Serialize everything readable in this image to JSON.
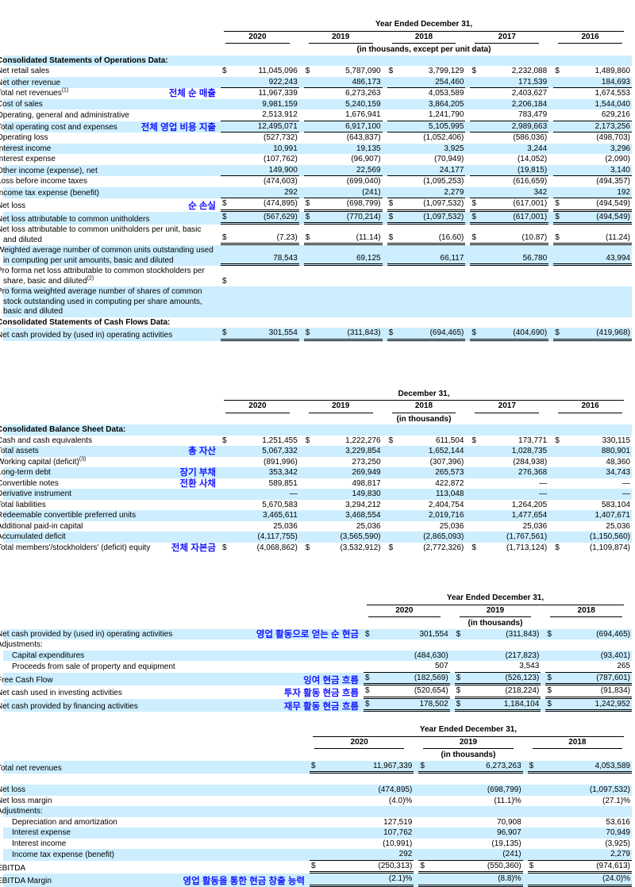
{
  "colors": {
    "row_shade": "#cceeff",
    "annotation_blue": "#1414ff",
    "border": "#000000"
  },
  "tables": [
    {
      "name": "operations-and-cash-flows-data",
      "period_header": "Year Ended December 31,",
      "years": [
        "2020",
        "2019",
        "2018",
        "2017",
        "2016"
      ],
      "unit_note": "(in thousands, except per unit data)",
      "label_col_width": 268,
      "rows": [
        {
          "label": "Consolidated Statements of Operations Data:",
          "bold": true,
          "shade": true,
          "values": null
        },
        {
          "label": "Net retail sales",
          "shade": false,
          "dollar": true,
          "values": [
            "11,045,096",
            "5,787,090",
            "3,799,129",
            "2,232,088",
            "1,489,860"
          ]
        },
        {
          "label": "Net other revenue",
          "shade": true,
          "line": "single",
          "values": [
            "922,243",
            "486,173",
            "254,460",
            "171,539",
            "184,693"
          ]
        },
        {
          "label": "Total net revenues",
          "sup": "(1)",
          "shade": false,
          "annotation": "전체 순 매출",
          "values": [
            "11,967,339",
            "6,273,263",
            "4,053,589",
            "2,403,627",
            "1,674,553"
          ]
        },
        {
          "label": "Cost of sales",
          "shade": true,
          "values": [
            "9,981,159",
            "5,240,159",
            "3,864,205",
            "2,206,184",
            "1,544,040"
          ]
        },
        {
          "label": "Operating, general and administrative",
          "shade": false,
          "line": "single",
          "values": [
            "2,513,912",
            "1,676,941",
            "1,241,790",
            "783,479",
            "629,216"
          ]
        },
        {
          "label": "Total operating cost and expenses",
          "shade": true,
          "line": "single",
          "annotation": "전체 영업 비용 지출",
          "values": [
            "12,495,071",
            "6,917,100",
            "5,105,995",
            "2,989,663",
            "2,173,256"
          ]
        },
        {
          "label": "Operating loss",
          "shade": false,
          "values": [
            "(527,732)",
            "(643,837)",
            "(1,052,406)",
            "(586,036)",
            "(498,703)"
          ]
        },
        {
          "label": "Interest income",
          "shade": true,
          "values": [
            "10,991",
            "19,135",
            "3,925",
            "3,244",
            "3,296"
          ]
        },
        {
          "label": "Interest expense",
          "shade": false,
          "values": [
            "(107,762)",
            "(96,907)",
            "(70,949)",
            "(14,052)",
            "(2,090)"
          ]
        },
        {
          "label": "Other income (expense), net",
          "shade": true,
          "line": "single",
          "values": [
            "149,900",
            "22,569",
            "24,177",
            "(19,815)",
            "3,140"
          ]
        },
        {
          "label": "Loss before income taxes",
          "shade": false,
          "values": [
            "(474,603)",
            "(699,040)",
            "(1,095,253)",
            "(616,659)",
            "(494,357)"
          ]
        },
        {
          "label": "Income tax expense (benefit)",
          "shade": true,
          "line": "single",
          "values": [
            "292",
            "(241)",
            "2,279",
            "342",
            "192"
          ]
        },
        {
          "label": "Net loss",
          "shade": false,
          "dollar": true,
          "line": "double",
          "annotation": "순 손실",
          "values": [
            "(474,895)",
            "(698,799)",
            "(1,097,532)",
            "(617,001)",
            "(494,549)"
          ]
        },
        {
          "label": "Net loss attributable to common unitholders",
          "shade": true,
          "dollar": true,
          "line": "double",
          "values": [
            "(567,629)",
            "(770,214)",
            "(1,097,532)",
            "(617,001)",
            "(494,549)"
          ]
        },
        {
          "label": "Net loss attributable to common unitholders per unit, basic and diluted",
          "shade": false,
          "dollar": true,
          "line": "double",
          "values": [
            "(7.23)",
            "(11.14)",
            "(16.60)",
            "(10.87)",
            "(11.24)"
          ]
        },
        {
          "label": "Weighted average number of common units outstanding used in computing per unit amounts, basic and diluted",
          "shade": true,
          "line": "double",
          "values": [
            "78,543",
            "69,125",
            "66,117",
            "56,780",
            "43,994"
          ]
        },
        {
          "label": "Pro forma net loss attributable to common stockholders per share, basic and diluted",
          "sup": "(2)",
          "shade": false,
          "dollar": "first",
          "values": [
            "",
            "",
            "",
            "",
            ""
          ]
        },
        {
          "label": "Pro forma weighted average number of shares of common stock outstanding used in computing per share amounts, basic and diluted",
          "shade": true,
          "values": null
        },
        {
          "label": "Consolidated Statements of Cash Flows Data:",
          "bold": true,
          "shade": false,
          "values": null
        },
        {
          "label": "Net cash provided by (used in) operating activities",
          "shade": true,
          "dollar": true,
          "line": "double",
          "values": [
            "301,554",
            "(311,843)",
            "(694,465)",
            "(404,690)",
            "(419,968)"
          ]
        }
      ]
    },
    {
      "name": "balance-sheet-data",
      "period_header": "December 31,",
      "years": [
        "2020",
        "2019",
        "2018",
        "2017",
        "2016"
      ],
      "unit_note": "(in thousands)",
      "label_col_width": 268,
      "rows": [
        {
          "label": "Consolidated Balance Sheet Data:",
          "bold": true,
          "shade": true,
          "values": null
        },
        {
          "label": "Cash and cash equivalents",
          "shade": false,
          "dollar": true,
          "values": [
            "1,251,455",
            "1,222,276",
            "611,504",
            "173,771",
            "330,115"
          ]
        },
        {
          "label": "Total assets",
          "shade": true,
          "annotation": "총 자산",
          "values": [
            "5,067,332",
            "3,229,854",
            "1,652,144",
            "1,028,735",
            "880,901"
          ]
        },
        {
          "label": "Working capital (deficit)",
          "sup": "(3)",
          "shade": false,
          "values": [
            "(891,996)",
            "273,250",
            "(307,396)",
            "(284,938)",
            "48,360"
          ]
        },
        {
          "label": "Long-term debt",
          "shade": true,
          "annotation": "장기 부채",
          "values": [
            "353,342",
            "269,949",
            "265,573",
            "276,368",
            "34,743"
          ]
        },
        {
          "label": "Convertible notes",
          "shade": false,
          "annotation": "전환 사채",
          "values": [
            "589,851",
            "498,817",
            "422,872",
            "—",
            "—"
          ]
        },
        {
          "label": "Derivative instrument",
          "shade": true,
          "values": [
            "—",
            "149,830",
            "113,048",
            "—",
            "—"
          ]
        },
        {
          "label": "Total liabilities",
          "shade": false,
          "values": [
            "5,670,583",
            "3,294,212",
            "2,404,754",
            "1,264,205",
            "583,104"
          ]
        },
        {
          "label": "Redeemable convertible preferred units",
          "shade": true,
          "values": [
            "3,465,611",
            "3,468,554",
            "2,019,716",
            "1,477,654",
            "1,407,671"
          ]
        },
        {
          "label": "Additional paid-in capital",
          "shade": false,
          "values": [
            "25,036",
            "25,036",
            "25,036",
            "25,036",
            "25,036"
          ]
        },
        {
          "label": "Accumulated deficit",
          "shade": true,
          "values": [
            "(4,117,755)",
            "(3,565,590)",
            "(2,865,093)",
            "(1,767,561)",
            "(1,150,560)"
          ]
        },
        {
          "label": "Total members'/stockholders' (deficit) equity",
          "shade": false,
          "dollar": true,
          "annotation": "전체 자본금",
          "values": [
            "(4,068,862)",
            "(3,532,912)",
            "(2,772,326)",
            "(1,713,124)",
            "(1,109,874)"
          ]
        }
      ]
    },
    {
      "name": "free-cash-flow",
      "period_header": "Year Ended December 31,",
      "years": [
        "2020",
        "2019",
        "2018"
      ],
      "unit_note": "(in thousands)",
      "label_col_width": 448,
      "rows": [
        {
          "label": "Net cash provided by (used in) operating activities",
          "shade": true,
          "dollar": true,
          "annotation": "영업 활동으로 얻는 순 현금",
          "values": [
            "301,554",
            "(311,843)",
            "(694,465)"
          ]
        },
        {
          "label": "Adjustments:",
          "shade": false,
          "values": null
        },
        {
          "label": "Capital expenditures",
          "indent": 1,
          "shade": true,
          "values": [
            "(484,630)",
            "(217,823)",
            "(93,401)"
          ]
        },
        {
          "label": "Proceeds from sale of property and equipment",
          "indent": 1,
          "shade": false,
          "line": "single",
          "values": [
            "507",
            "3,543",
            "265"
          ]
        },
        {
          "label": "Free Cash Flow",
          "shade": true,
          "dollar": true,
          "line": "double",
          "annotation": "잉여 현금 흐름",
          "values": [
            "(182,569)",
            "(526,123)",
            "(787,601)"
          ]
        },
        {
          "label": "Net cash used in investing activities",
          "shade": false,
          "dollar": true,
          "line": "double",
          "annotation": "투자 활동 현금 흐름",
          "values": [
            "(520,654)",
            "(218,224)",
            "(91,834)"
          ]
        },
        {
          "label": "Net cash provided by financing activities",
          "shade": true,
          "dollar": true,
          "line": "double",
          "annotation": "재무 활동 현금 흐름",
          "values": [
            "178,502",
            "1,184,104",
            "1,242,952"
          ]
        }
      ]
    },
    {
      "name": "ebitda-reconciliation",
      "period_header": "Year Ended December 31,",
      "years": [
        "2020",
        "2019",
        "2018"
      ],
      "unit_note": "(in thousands)",
      "label_col_width": 380,
      "rows": [
        {
          "label": "Total net revenues",
          "shade": true,
          "dollar": true,
          "line": "double",
          "values": [
            "11,967,339",
            "6,273,263",
            "4,053,589"
          ]
        },
        {
          "label": "",
          "shade": false,
          "values": null,
          "spacer": true
        },
        {
          "label": "Net loss",
          "shade": true,
          "values": [
            "(474,895)",
            "(698,799)",
            "(1,097,532)"
          ]
        },
        {
          "label": "Net loss margin",
          "shade": false,
          "values": [
            "(4.0)%",
            "(11.1)%",
            "(27.1)%"
          ]
        },
        {
          "label": "Adjustments:",
          "shade": true,
          "values": null
        },
        {
          "label": "Depreciation and amortization",
          "indent": 1,
          "shade": false,
          "values": [
            "127,519",
            "70,908",
            "53,616"
          ]
        },
        {
          "label": "Interest expense",
          "indent": 1,
          "shade": true,
          "values": [
            "107,762",
            "96,907",
            "70,949"
          ]
        },
        {
          "label": "Interest income",
          "indent": 1,
          "shade": false,
          "values": [
            "(10,991)",
            "(19,135)",
            "(3,925)"
          ]
        },
        {
          "label": "Income tax expense (benefit)",
          "indent": 1,
          "shade": true,
          "line": "single",
          "values": [
            "292",
            "(241)",
            "2,279"
          ]
        },
        {
          "label": "EBITDA",
          "shade": false,
          "dollar": true,
          "line": "double",
          "values": [
            "(250,313)",
            "(550,360)",
            "(974,613)"
          ]
        },
        {
          "label": "EBITDA Margin",
          "shade": true,
          "line": "double",
          "annotation": "영업 활동을 통한 현금 창출 능력",
          "values": [
            "(2.1)%",
            "(8.8)%",
            "(24.0)%"
          ]
        }
      ]
    }
  ]
}
